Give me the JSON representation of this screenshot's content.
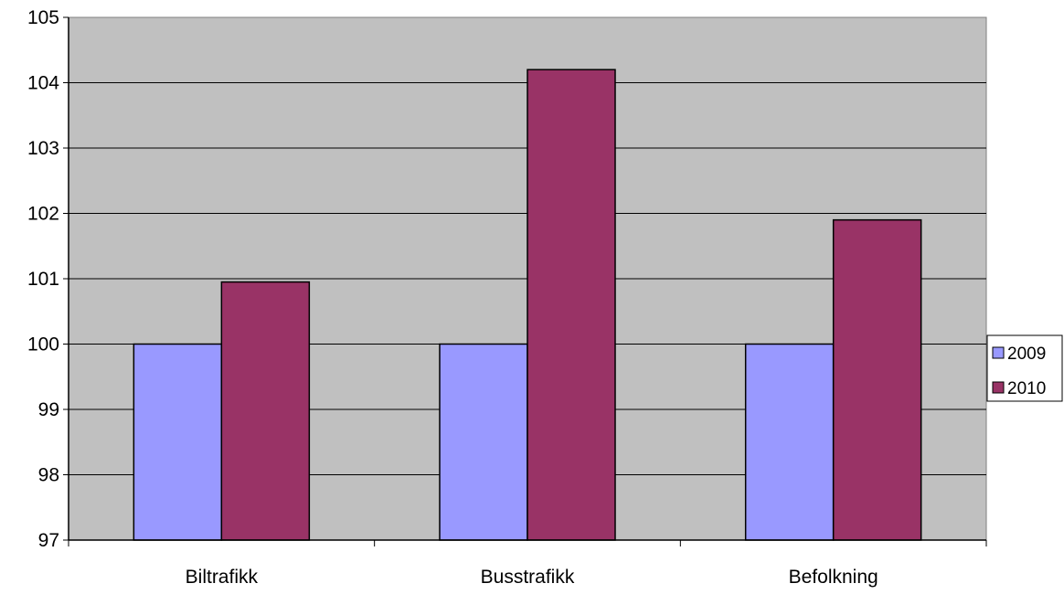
{
  "chart_data": {
    "type": "bar",
    "title": "",
    "xlabel": "",
    "ylabel": "",
    "categories": [
      "Biltrafikk",
      "Busstrafikk",
      "Befolkning"
    ],
    "series": [
      {
        "name": "2009",
        "values": [
          100,
          100,
          100
        ],
        "color": "#9999ff"
      },
      {
        "name": "2010",
        "values": [
          100.95,
          104.2,
          101.9
        ],
        "color": "#993366"
      }
    ],
    "ylim": [
      97,
      105
    ],
    "yticks": [
      97,
      98,
      99,
      100,
      101,
      102,
      103,
      104,
      105
    ],
    "grid": true,
    "legend_position": "right",
    "plot_background": "#c0c0c0"
  }
}
